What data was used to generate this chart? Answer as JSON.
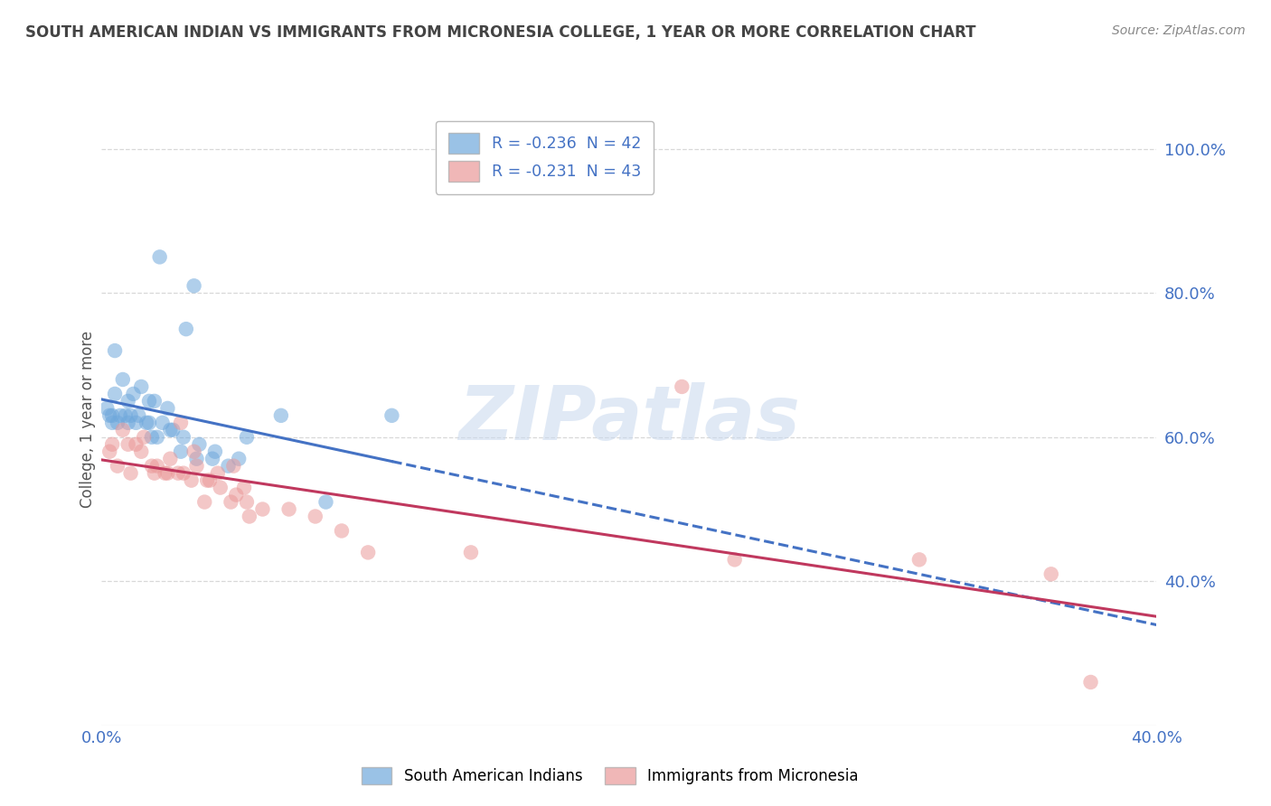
{
  "title": "SOUTH AMERICAN INDIAN VS IMMIGRANTS FROM MICRONESIA COLLEGE, 1 YEAR OR MORE CORRELATION CHART",
  "source": "Source: ZipAtlas.com",
  "ylabel": "College, 1 year or more",
  "legend1_label": "R = -0.236  N = 42",
  "legend2_label": "R = -0.231  N = 43",
  "legend1_color": "#6fa8dc",
  "legend2_color": "#ea9999",
  "trendline1_color": "#4472c4",
  "trendline2_color": "#c0385e",
  "watermark": "ZIPatlas",
  "blue_x": [
    0.4,
    2.2,
    3.5,
    3.2,
    0.5,
    0.8,
    1.0,
    1.2,
    1.5,
    1.8,
    2.0,
    2.5,
    0.3,
    0.6,
    0.9,
    1.3,
    1.7,
    2.1,
    2.6,
    3.0,
    3.6,
    4.2,
    0.2,
    0.4,
    0.7,
    1.0,
    1.4,
    1.8,
    2.3,
    2.7,
    3.1,
    3.7,
    4.3,
    0.5,
    1.1,
    1.9,
    4.8,
    8.5,
    11.0,
    5.5,
    5.2,
    6.8
  ],
  "blue_y": [
    63,
    85,
    81,
    75,
    72,
    68,
    65,
    66,
    67,
    65,
    65,
    64,
    63,
    62,
    63,
    62,
    62,
    60,
    61,
    58,
    57,
    57,
    64,
    62,
    63,
    62,
    63,
    62,
    62,
    61,
    60,
    59,
    58,
    66,
    63,
    60,
    56,
    51,
    63,
    60,
    57,
    63
  ],
  "pink_x": [
    0.3,
    0.6,
    1.0,
    1.5,
    2.0,
    2.5,
    3.0,
    3.5,
    4.0,
    4.5,
    5.0,
    5.5,
    0.4,
    0.8,
    1.3,
    1.9,
    2.4,
    2.9,
    3.4,
    3.9,
    4.4,
    4.9,
    5.4,
    1.1,
    2.1,
    3.1,
    4.1,
    5.1,
    6.1,
    7.1,
    8.1,
    9.1,
    10.1,
    1.6,
    2.6,
    3.6,
    5.6,
    14.0,
    24.0,
    31.0,
    36.0,
    37.5,
    22.0
  ],
  "pink_y": [
    58,
    56,
    59,
    58,
    55,
    55,
    62,
    58,
    54,
    53,
    56,
    51,
    59,
    61,
    59,
    56,
    55,
    55,
    54,
    51,
    55,
    51,
    53,
    55,
    56,
    55,
    54,
    52,
    50,
    50,
    49,
    47,
    44,
    60,
    57,
    56,
    49,
    44,
    43,
    43,
    41,
    26,
    67
  ],
  "xmin": 0,
  "xmax": 40,
  "ymin": 20,
  "ymax": 105,
  "yticks": [
    40,
    60,
    80,
    100
  ],
  "ytick_labels": [
    "40.0%",
    "60.0%",
    "80.0%",
    "100.0%"
  ],
  "grid_color": "#d8d8d8",
  "background_color": "#ffffff"
}
